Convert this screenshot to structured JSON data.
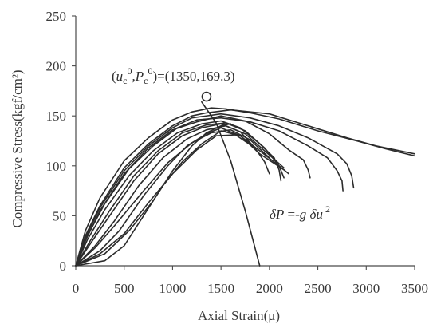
{
  "chart_data": {
    "type": "line",
    "xlabel": "Axial Strain(μ)",
    "ylabel": "Compressive Stress(kgf/cm²)",
    "xlim": [
      0,
      3500
    ],
    "ylim": [
      0,
      250
    ],
    "xticks": [
      0,
      500,
      1000,
      1500,
      2000,
      2500,
      3000,
      3500
    ],
    "yticks": [
      0,
      50,
      100,
      150,
      200,
      250
    ],
    "grid": false,
    "colors": {
      "curves": "#2b2b2b",
      "axes": "#4a4a4a",
      "text": "#3a3a3a"
    },
    "series": [
      {
        "x": [
          0,
          100,
          250,
          500,
          750,
          1000,
          1200,
          1400,
          1550,
          1800,
          2100,
          2500,
          2900,
          3200,
          3500
        ],
        "y": [
          0,
          35,
          68,
          105,
          128,
          146,
          154,
          158,
          157,
          153,
          147,
          135,
          125,
          117,
          110
        ]
      },
      {
        "x": [
          0,
          100,
          250,
          500,
          750,
          1000,
          1200,
          1350,
          1600,
          2000,
          2400,
          2800,
          3100,
          3500
        ],
        "y": [
          0,
          30,
          60,
          98,
          122,
          140,
          150,
          153,
          156,
          152,
          140,
          128,
          120,
          112
        ]
      },
      {
        "x": [
          0,
          100,
          250,
          500,
          750,
          1000,
          1200,
          1500,
          1800,
          2100,
          2400,
          2700,
          2800,
          2850,
          2870
        ],
        "y": [
          0,
          28,
          58,
          95,
          120,
          138,
          148,
          152,
          148,
          140,
          128,
          112,
          102,
          90,
          78
        ]
      },
      {
        "x": [
          0,
          120,
          300,
          550,
          800,
          1050,
          1250,
          1500,
          1800,
          2100,
          2400,
          2600,
          2700,
          2750,
          2760
        ],
        "y": [
          0,
          30,
          62,
          97,
          120,
          138,
          146,
          148,
          144,
          135,
          120,
          108,
          95,
          85,
          75
        ]
      },
      {
        "x": [
          0,
          100,
          250,
          500,
          750,
          1000,
          1250,
          1500,
          1750,
          2000,
          2200,
          2350,
          2400,
          2420
        ],
        "y": [
          0,
          25,
          55,
          92,
          118,
          136,
          144,
          150,
          145,
          132,
          116,
          106,
          96,
          88
        ]
      },
      {
        "x": [
          0,
          120,
          300,
          550,
          800,
          1050,
          1300,
          1500,
          1700,
          1900,
          2050,
          2100,
          2120
        ],
        "y": [
          0,
          26,
          56,
          90,
          115,
          133,
          142,
          145,
          138,
          122,
          108,
          96,
          85
        ]
      },
      {
        "x": [
          0,
          150,
          350,
          600,
          850,
          1100,
          1350,
          1550,
          1750,
          1950,
          2100,
          2150
        ],
        "y": [
          0,
          25,
          55,
          90,
          115,
          133,
          141,
          143,
          135,
          118,
          100,
          88
        ]
      },
      {
        "x": [
          0,
          150,
          350,
          600,
          850,
          1100,
          1300,
          1500,
          1700,
          1850,
          1950,
          2000
        ],
        "y": [
          0,
          22,
          50,
          85,
          112,
          130,
          138,
          142,
          134,
          118,
          104,
          92
        ]
      },
      {
        "x": [
          0,
          200,
          400,
          650,
          900,
          1150,
          1350,
          1550,
          1750,
          1950,
          2150
        ],
        "y": [
          0,
          20,
          45,
          80,
          108,
          127,
          136,
          140,
          132,
          115,
          98
        ]
      },
      {
        "x": [
          0,
          200,
          400,
          700,
          950,
          1200,
          1400,
          1600,
          1800,
          2000
        ],
        "y": [
          0,
          18,
          40,
          75,
          103,
          123,
          133,
          136,
          126,
          108
        ]
      },
      {
        "x": [
          0,
          250,
          450,
          700,
          950,
          1150,
          1350,
          1500,
          1700,
          1900,
          2150
        ],
        "y": [
          0,
          15,
          35,
          70,
          100,
          120,
          132,
          138,
          130,
          112,
          96
        ]
      },
      {
        "x": [
          0,
          250,
          500,
          750,
          1000,
          1250,
          1450,
          1650,
          1850
        ],
        "y": [
          0,
          12,
          32,
          63,
          92,
          116,
          130,
          131,
          118
        ]
      },
      {
        "x": [
          0,
          300,
          500,
          700,
          900,
          1100,
          1300,
          1500,
          1700,
          1900,
          2100,
          2200
        ],
        "y": [
          0,
          5,
          20,
          50,
          80,
          104,
          122,
          135,
          130,
          115,
          100,
          92
        ]
      },
      {
        "x": [
          50,
          300,
          550,
          800,
          1000,
          1200,
          1350,
          1500,
          1600
        ],
        "y": [
          2,
          12,
          35,
          65,
          95,
          120,
          133,
          140,
          142
        ]
      }
    ],
    "point": {
      "x": 1350,
      "y": 169.3
    },
    "fit_line": {
      "x": [
        1300,
        1450,
        1600,
        1750,
        1900
      ],
      "y": [
        164,
        143,
        105,
        55,
        0
      ]
    },
    "annotations": {
      "peak_label": "(uc0,Pc0)=(1350,169.3)",
      "equation": "δP=-g δu²"
    }
  }
}
